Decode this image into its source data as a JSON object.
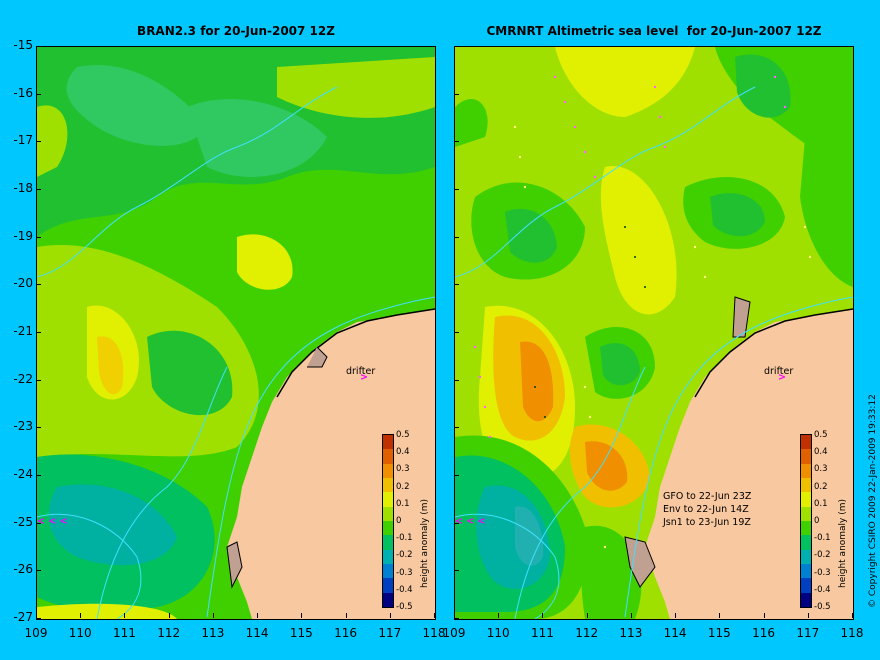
{
  "panels": [
    {
      "title": "BRAN2.3 for 20-Jun-2007 12Z",
      "drifter_label": "drifter"
    },
    {
      "title": "CMRNRT Altimetric sea level  for 20-Jun-2007 12Z",
      "drifter_label": "drifter",
      "satellites": [
        "GFO to 22-Jun 23Z",
        "Env to 22-Jun 14Z",
        "Jsn1 to 23-Jun 19Z"
      ]
    }
  ],
  "latitude_ticks": [
    "-15",
    "-16",
    "-17",
    "-18",
    "-19",
    "-20",
    "-21",
    "-22",
    "-23",
    "-24",
    "-25",
    "-26",
    "-27"
  ],
  "longitude_ticks": [
    "109",
    "110",
    "111",
    "112",
    "113",
    "114",
    "115",
    "116",
    "117",
    "118"
  ],
  "colorbar": {
    "title": "height anomaly (m)",
    "ticks": [
      "0.5",
      "0.4",
      "0.3",
      "0.2",
      "0.1",
      "0",
      "-0.1",
      "-0.2",
      "-0.3",
      "-0.4",
      "-0.5"
    ],
    "colors": [
      "#c03000",
      "#e06000",
      "#f09000",
      "#f0c000",
      "#e0f000",
      "#a0e000",
      "#40d000",
      "#00c060",
      "#00b0b0",
      "#0080d0",
      "#0040c0",
      "#000080"
    ]
  },
  "copyright": "© Copyright CSIRO 2009   22-Jan-2009 19:33:12",
  "colors": {
    "background": "#00c8ff",
    "land": "#f8c8a0",
    "drifter": "#ff00ff"
  }
}
